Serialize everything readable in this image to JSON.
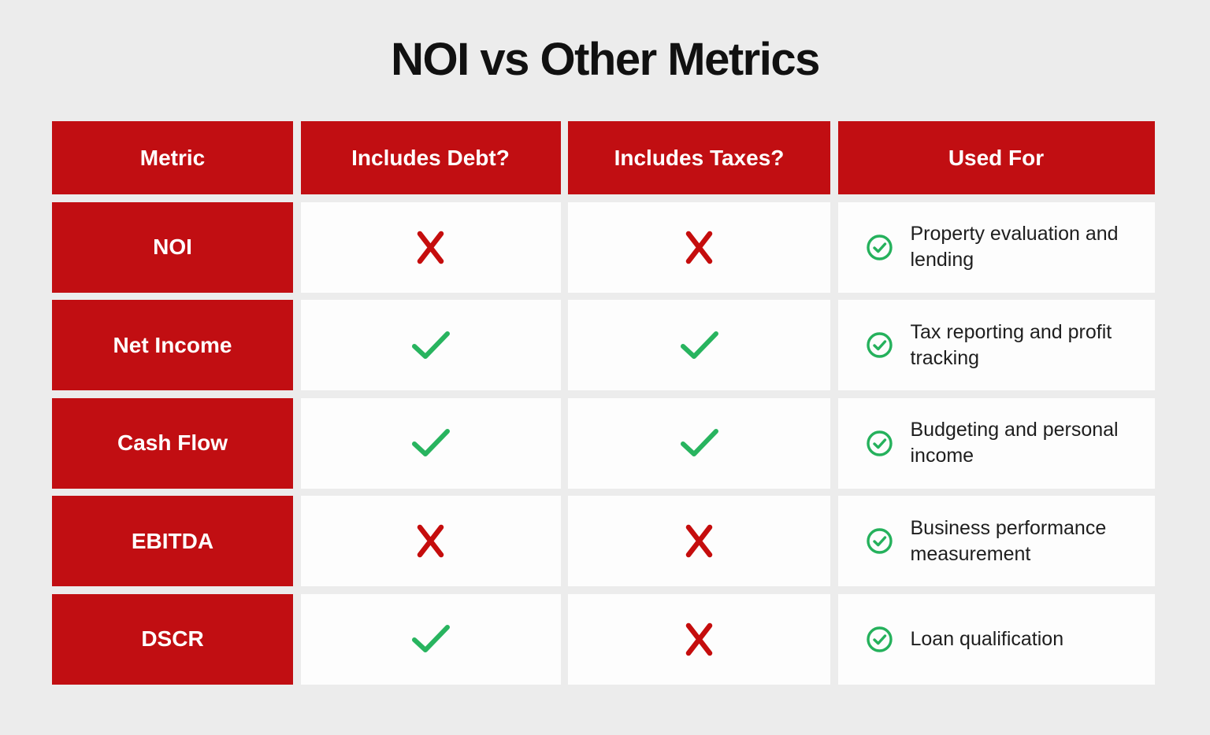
{
  "title": "NOI vs Other Metrics",
  "colors": {
    "background": "#ececec",
    "red_cell": "#c10e12",
    "white_cell": "#fdfdfd",
    "cross_red": "#c50d0d",
    "check_green": "#28b45f",
    "circle_check_green": "#25b15c",
    "title_text": "#111111",
    "body_text": "#1e1e1e"
  },
  "icons": {
    "yes": "check-icon",
    "no": "cross-icon",
    "used_for": "circle-check-icon"
  },
  "table": {
    "headers": [
      "Metric",
      "Includes Debt?",
      "Includes Taxes?",
      "Used For"
    ],
    "rows": [
      {
        "metric": "NOI",
        "includes_debt": "no",
        "includes_taxes": "no",
        "used_for": "Property evaluation and lending"
      },
      {
        "metric": "Net Income",
        "includes_debt": "yes",
        "includes_taxes": "yes",
        "used_for": "Tax reporting and profit tracking"
      },
      {
        "metric": "Cash Flow",
        "includes_debt": "yes",
        "includes_taxes": "yes",
        "used_for": "Budgeting and personal income"
      },
      {
        "metric": "EBITDA",
        "includes_debt": "no",
        "includes_taxes": "no",
        "used_for": "Business performance measurement"
      },
      {
        "metric": "DSCR",
        "includes_debt": "yes",
        "includes_taxes": "no",
        "used_for": "Loan qualification"
      }
    ]
  },
  "chart_data": {
    "type": "table",
    "title": "NOI vs Other Metrics",
    "columns": [
      "Metric",
      "Includes Debt?",
      "Includes Taxes?",
      "Used For"
    ],
    "rows": [
      [
        "NOI",
        "no",
        "no",
        "Property evaluation and lending"
      ],
      [
        "Net Income",
        "yes",
        "yes",
        "Tax reporting and profit tracking"
      ],
      [
        "Cash Flow",
        "yes",
        "yes",
        "Budgeting and personal income"
      ],
      [
        "EBITDA",
        "no",
        "no",
        "Business performance measurement"
      ],
      [
        "DSCR",
        "yes",
        "no",
        "Loan qualification"
      ]
    ],
    "legend": "yes = green check mark, no = red cross mark; every Used For entry is marked with a green circled check"
  }
}
